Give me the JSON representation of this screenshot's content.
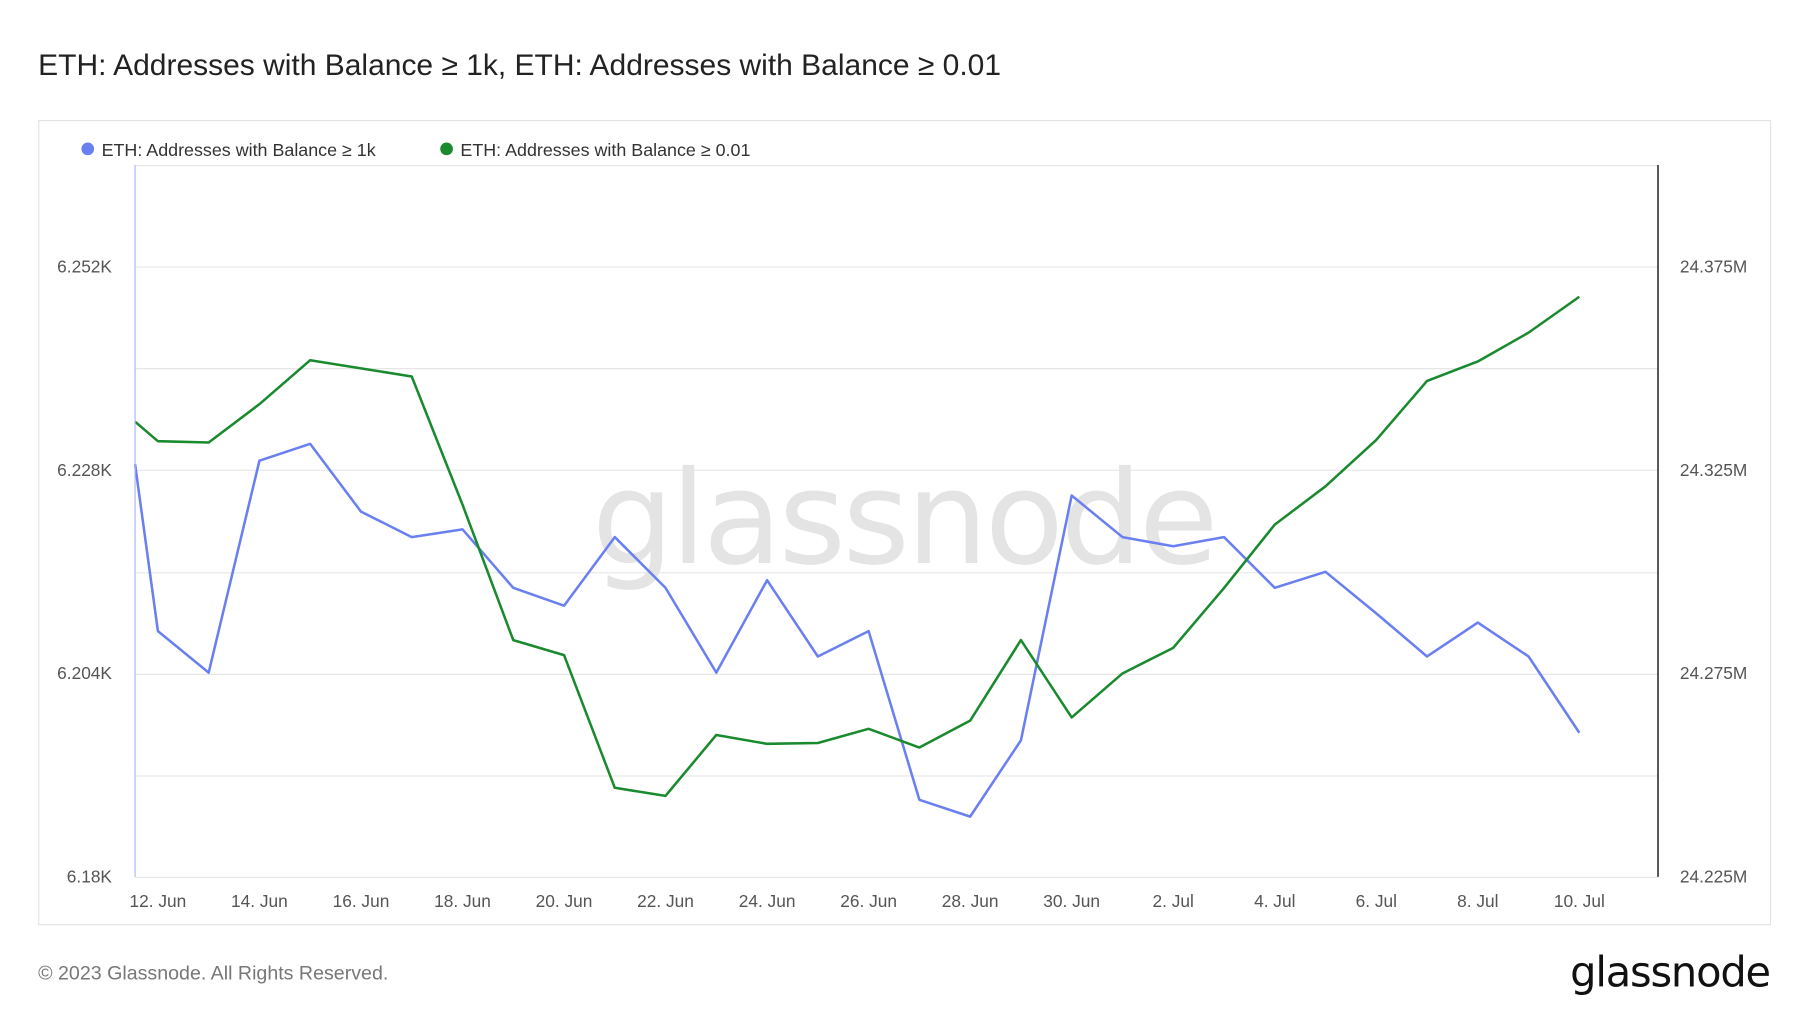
{
  "title": "ETH: Addresses with Balance ≥ 1k, ETH: Addresses with Balance ≥ 0.01",
  "footer": "© 2023 Glassnode. All Rights Reserved.",
  "logo": "glassnode",
  "watermark": "glassnode",
  "chart_data": {
    "type": "line",
    "title": "ETH: Addresses with Balance ≥ 1k, ETH: Addresses with Balance ≥ 0.01",
    "legend_position": "top-left",
    "grid": true,
    "x": [
      "11 Jun",
      "12 Jun",
      "13 Jun",
      "14 Jun",
      "15 Jun",
      "16 Jun",
      "17 Jun",
      "18 Jun",
      "19 Jun",
      "20 Jun",
      "21 Jun",
      "22 Jun",
      "23 Jun",
      "24 Jun",
      "25 Jun",
      "26 Jun",
      "27 Jun",
      "28 Jun",
      "29 Jun",
      "30 Jun",
      "1 Jul",
      "2 Jul",
      "3 Jul",
      "4 Jul",
      "5 Jul",
      "6 Jul",
      "7 Jul",
      "8 Jul",
      "9 Jul",
      "10 Jul"
    ],
    "x_day_index": [
      11.55,
      12,
      13,
      14,
      15,
      16,
      17,
      18,
      19,
      20,
      21,
      22,
      23,
      24,
      25,
      26,
      27,
      28,
      29,
      30,
      31,
      32,
      33,
      34,
      35,
      36,
      37,
      38,
      39,
      40
    ],
    "x_range_day_index": [
      11.55,
      41.55
    ],
    "x_ticks": [
      {
        "label": "12. Jun",
        "day": 12
      },
      {
        "label": "14. Jun",
        "day": 14
      },
      {
        "label": "16. Jun",
        "day": 16
      },
      {
        "label": "18. Jun",
        "day": 18
      },
      {
        "label": "20. Jun",
        "day": 20
      },
      {
        "label": "22. Jun",
        "day": 22
      },
      {
        "label": "24. Jun",
        "day": 24
      },
      {
        "label": "26. Jun",
        "day": 26
      },
      {
        "label": "28. Jun",
        "day": 28
      },
      {
        "label": "30. Jun",
        "day": 30
      },
      {
        "label": "2. Jul",
        "day": 32
      },
      {
        "label": "4. Jul",
        "day": 34
      },
      {
        "label": "6. Jul",
        "day": 36
      },
      {
        "label": "8. Jul",
        "day": 38
      },
      {
        "label": "10. Jul",
        "day": 40
      }
    ],
    "y_left": {
      "range": [
        6180,
        6264
      ],
      "ticks": [
        {
          "label": "6.18K",
          "value": 6180
        },
        {
          "label": "6.204K",
          "value": 6204
        },
        {
          "label": "6.228K",
          "value": 6228
        },
        {
          "label": "6.252K",
          "value": 6252
        }
      ],
      "grid_values": [
        6180,
        6192,
        6204,
        6216,
        6228,
        6240,
        6252,
        6264
      ]
    },
    "y_right": {
      "range": [
        24225000,
        24400000
      ],
      "ticks": [
        {
          "label": "24.225M",
          "value": 24225000
        },
        {
          "label": "24.275M",
          "value": 24275000
        },
        {
          "label": "24.325M",
          "value": 24325000
        },
        {
          "label": "24.375M",
          "value": 24375000
        }
      ]
    },
    "series": [
      {
        "name": "ETH: Addresses with Balance ≥ 1k",
        "axis": "left",
        "color": "#6a7ff0",
        "values": [
          6228.7,
          6209.0,
          6204.1,
          6229.1,
          6231.1,
          6223.1,
          6220.1,
          6221.0,
          6214.1,
          6212.0,
          6220.1,
          6214.1,
          6204.1,
          6215.0,
          6206.0,
          6209.0,
          6189.1,
          6187.1,
          6196.1,
          6225.0,
          6220.1,
          6219.0,
          6220.1,
          6214.1,
          6216.0,
          6211.1,
          6206.0,
          6210.0,
          6206.0,
          6197.0
        ]
      },
      {
        "name": "ETH: Addresses with Balance ≥ 0.01",
        "axis": "right",
        "color": "#1a8a2e",
        "values": [
          24336900,
          24332100,
          24331800,
          24341200,
          24352000,
          24350000,
          24348000,
          24316500,
          24283200,
          24279500,
          24246900,
          24244900,
          24259900,
          24257700,
          24257900,
          24261400,
          24256800,
          24263400,
          24283200,
          24264200,
          24275000,
          24281300,
          24296000,
          24311600,
          24321000,
          24332400,
          24346900,
          24351700,
          24358800,
          24367600
        ]
      }
    ]
  }
}
